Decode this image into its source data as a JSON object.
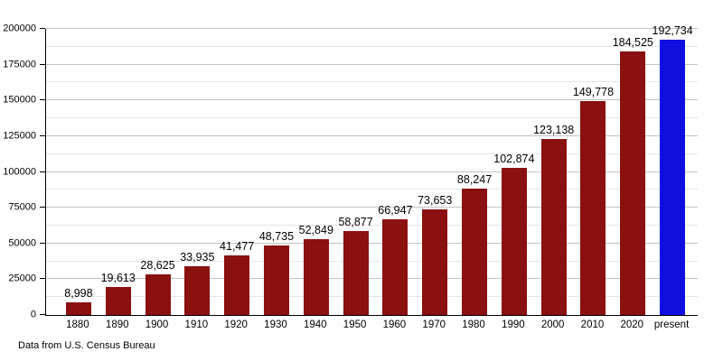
{
  "footer": {
    "source_note": "Data from U.S. Census Bureau"
  },
  "colors": {
    "bar": "#8b1010",
    "bar_highlight": "#0f0fe0",
    "grid_major": "#c3c3c3",
    "grid_minor": "#e6e6e6",
    "axis": "#000000",
    "background": "#ffffff",
    "text": "#000000"
  },
  "chart_data": {
    "type": "bar",
    "title": "",
    "xlabel": "",
    "ylabel": "",
    "categories": [
      "1880",
      "1890",
      "1900",
      "1910",
      "1920",
      "1930",
      "1940",
      "1950",
      "1960",
      "1970",
      "1980",
      "1990",
      "2000",
      "2010",
      "2020",
      "present"
    ],
    "values": [
      8998,
      19613,
      28625,
      33935,
      41477,
      48735,
      52849,
      58877,
      66947,
      73653,
      88247,
      102874,
      123138,
      149778,
      184525,
      192734
    ],
    "value_labels": [
      "8,998",
      "19,613",
      "28,625",
      "33,935",
      "41,477",
      "48,735",
      "52,849",
      "58,877",
      "66,947",
      "73,653",
      "88,247",
      "102,874",
      "123,138",
      "149,778",
      "184,525",
      "192,734"
    ],
    "highlight_category": "present",
    "ylim": [
      0,
      200000
    ],
    "y_major_step": 25000,
    "y_minor_step": 12500,
    "y_tick_labels": [
      "0",
      "25000",
      "50000",
      "75000",
      "100000",
      "125000",
      "150000",
      "175000",
      "200000"
    ],
    "grid": true,
    "legend_position": "none",
    "source_note": "Data from U.S. Census Bureau"
  }
}
